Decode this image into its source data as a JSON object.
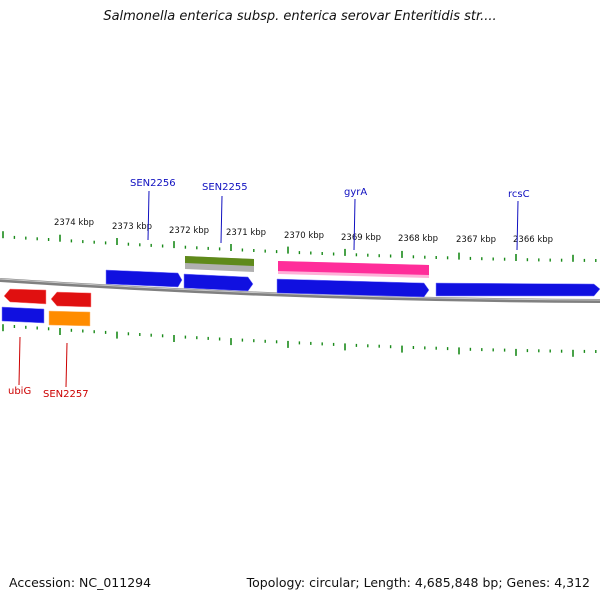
{
  "title": "Salmonella enterica subsp. enterica serovar Enteritidis str....",
  "footer": {
    "accession": "Accession: NC_011294",
    "summary": "Topology: circular; Length: 4,685,848 bp; Genes: 4,312"
  },
  "colors": {
    "forward_cds": "#1010e0",
    "reverse_cds": "#e01010",
    "rna": "#ff2d9a",
    "misc_green": "#5f8a1a",
    "reverse_orange": "#ff8c00",
    "tick_green": "#1a8a1a",
    "backbone": "#808080",
    "label_blue": "#1010c0",
    "label_red": "#cc0000"
  },
  "scale_labels": [
    "2374 kbp",
    "2373 kbp",
    "2372 kbp",
    "2371 kbp",
    "2370 kbp",
    "2369 kbp",
    "2368 kbp",
    "2367 kbp",
    "2366 kbp"
  ],
  "gene_labels_top": [
    "SEN2256",
    "SEN2255",
    "gyrA",
    "rcsC"
  ],
  "gene_labels_bottom": [
    "ubiG",
    "SEN2257"
  ]
}
